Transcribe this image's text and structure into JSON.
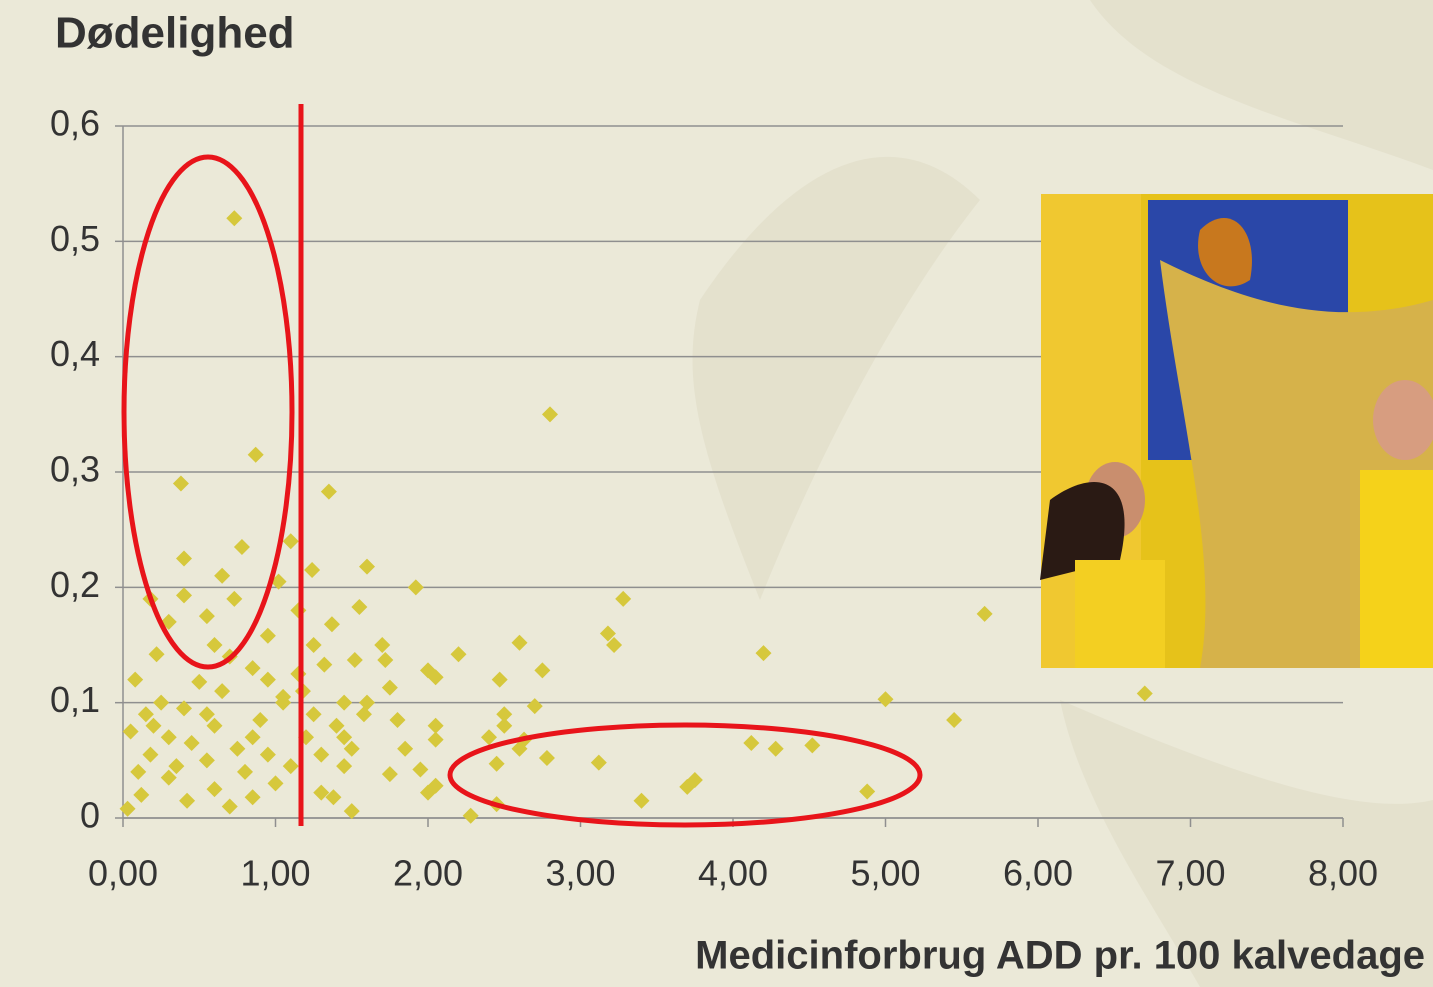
{
  "chart_data": {
    "type": "scatter",
    "title": "Dødelighed",
    "x_label": "Medicinforbrug ADD pr. 100 kalvedage",
    "color": "#d6c83c",
    "x": [
      0.73,
      2.8,
      0.87,
      1.35,
      0.38,
      0.78,
      1.1,
      0.4,
      0.65,
      1.24,
      1.6,
      1.02,
      1.92,
      0.4,
      0.73,
      3.28,
      0.18,
      1.55,
      5.65,
      1.15,
      0.55,
      1.37,
      0.3,
      3.18,
      0.95,
      3.22,
      0.6,
      2.6,
      1.25,
      1.7,
      0.22,
      2.2,
      4.2,
      1.52,
      1.72,
      0.85,
      1.32,
      2.0,
      2.75,
      2.05,
      0.08,
      1.15,
      0.5,
      6.7,
      2.47,
      0.65,
      1.75,
      5.0,
      1.45,
      0.25,
      1.05,
      0.4,
      2.7,
      0.15,
      1.25,
      1.58,
      2.5,
      5.45,
      0.9,
      1.8,
      0.6,
      2.05,
      1.4,
      0.05,
      2.5,
      0.3,
      1.2,
      2.05,
      2.63,
      4.12,
      4.52,
      4.28,
      0.45,
      0.75,
      1.5,
      1.85,
      2.4,
      0.18,
      0.95,
      1.3,
      2.6,
      0.55,
      2.78,
      3.12,
      0.35,
      1.1,
      1.45,
      2.45,
      0.1,
      0.8,
      1.75,
      1.95,
      3.75,
      0.3,
      1.0,
      2.05,
      3.7,
      0.6,
      1.3,
      2.0,
      4.88,
      0.12,
      0.85,
      1.38,
      0.42,
      3.4,
      2.45,
      0.7,
      0.03,
      1.5,
      2.28,
      1.05,
      0.95,
      0.7,
      1.18,
      0.2,
      0.55,
      1.6,
      0.85,
      1.45
    ],
    "values": [
      0.52,
      0.35,
      0.315,
      0.283,
      0.29,
      0.235,
      0.24,
      0.225,
      0.21,
      0.215,
      0.218,
      0.205,
      0.2,
      0.193,
      0.19,
      0.19,
      0.19,
      0.183,
      0.177,
      0.18,
      0.175,
      0.168,
      0.17,
      0.16,
      0.158,
      0.15,
      0.15,
      0.152,
      0.15,
      0.15,
      0.142,
      0.142,
      0.143,
      0.137,
      0.137,
      0.13,
      0.133,
      0.128,
      0.128,
      0.122,
      0.12,
      0.125,
      0.118,
      0.108,
      0.12,
      0.11,
      0.113,
      0.103,
      0.1,
      0.1,
      0.105,
      0.095,
      0.097,
      0.09,
      0.09,
      0.09,
      0.09,
      0.085,
      0.085,
      0.085,
      0.08,
      0.08,
      0.08,
      0.075,
      0.08,
      0.07,
      0.07,
      0.068,
      0.068,
      0.065,
      0.063,
      0.06,
      0.065,
      0.06,
      0.06,
      0.06,
      0.07,
      0.055,
      0.055,
      0.055,
      0.06,
      0.05,
      0.052,
      0.048,
      0.045,
      0.045,
      0.045,
      0.047,
      0.04,
      0.04,
      0.038,
      0.042,
      0.033,
      0.035,
      0.03,
      0.028,
      0.027,
      0.025,
      0.022,
      0.022,
      0.023,
      0.02,
      0.018,
      0.018,
      0.015,
      0.015,
      0.012,
      0.01,
      0.008,
      0.006,
      0.002,
      0.1,
      0.12,
      0.14,
      0.11,
      0.08,
      0.09,
      0.1,
      0.07,
      0.07
    ],
    "xlim": [
      0,
      8
    ],
    "xticks": [
      {
        "value": 0,
        "label": "0,00"
      },
      {
        "value": 1,
        "label": "1,00"
      },
      {
        "value": 2,
        "label": "2,00"
      },
      {
        "value": 3,
        "label": "3,00"
      },
      {
        "value": 4,
        "label": "4,00"
      },
      {
        "value": 5,
        "label": "5,00"
      },
      {
        "value": 6,
        "label": "6,00"
      },
      {
        "value": 7,
        "label": "7,00"
      },
      {
        "value": 8,
        "label": "8,00"
      }
    ],
    "ylim": [
      0,
      0.6
    ],
    "yticks": [
      0,
      {
        "value": 0.1,
        "label": "0,1"
      },
      {
        "value": 0.2,
        "label": "0,2"
      },
      {
        "value": 0.3,
        "label": "0,3"
      },
      {
        "value": 0.4,
        "label": "0,4"
      },
      {
        "value": 0.5,
        "label": "0,5"
      },
      {
        "value": 0.6,
        "label": "0,6"
      }
    ],
    "grid": true
  }
}
